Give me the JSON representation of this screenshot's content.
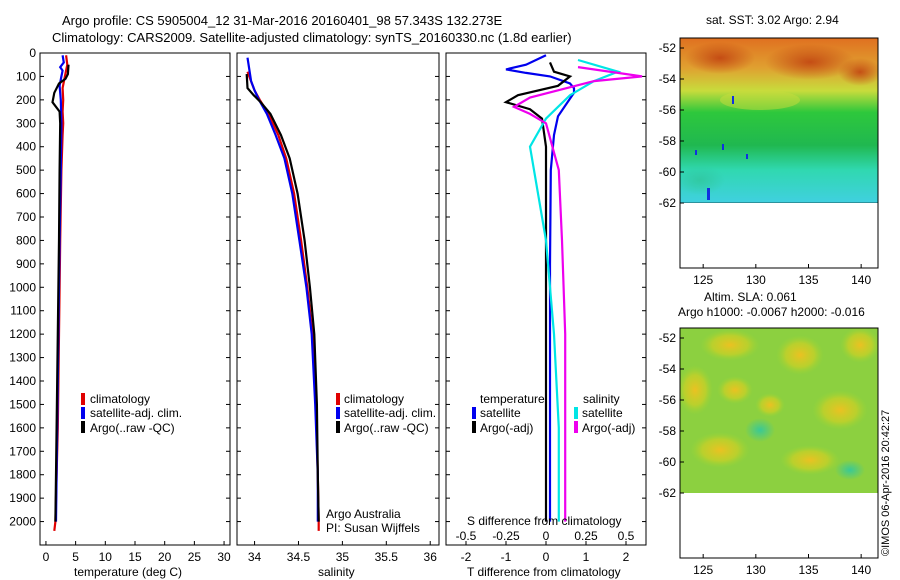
{
  "header": {
    "line1": "Argo profile: CS 5905004_12 31-Mar-2016 20160401_98 57.343S 132.273E",
    "line2": "Climatology: CARS2009. Satellite-adjusted climatology: synTS_20160330.nc (1.8d earlier)"
  },
  "colors": {
    "red": "#e00000",
    "blue": "#0000ee",
    "black": "#000000",
    "cyan": "#00e5e5",
    "magenta": "#ee00ee"
  },
  "chart_data": [
    {
      "type": "line",
      "name": "temperature-profile",
      "xlabel": "temperature (deg C)",
      "xlim": [
        -1,
        31
      ],
      "ylim": [
        0,
        2100
      ],
      "xticks": [
        "0",
        "5",
        "10",
        "15",
        "20",
        "25",
        "30"
      ],
      "yticks": [
        "0",
        "100",
        "200",
        "300",
        "400",
        "500",
        "600",
        "700",
        "800",
        "900",
        "1000",
        "1100",
        "1200",
        "1300",
        "1400",
        "1500",
        "1600",
        "1700",
        "1800",
        "1900",
        "2000"
      ],
      "legend": [
        "climatology",
        "satellite-adj. clim.",
        "Argo(..raw -QC)"
      ],
      "series": [
        {
          "name": "climatology",
          "color": "#e00000",
          "points": [
            [
              3.4,
              10
            ],
            [
              3.6,
              50
            ],
            [
              3.2,
              100
            ],
            [
              2.8,
              150
            ],
            [
              2.9,
              200
            ],
            [
              2.8,
              250
            ],
            [
              2.9,
              300
            ],
            [
              2.8,
              350
            ],
            [
              2.6,
              500
            ],
            [
              2.4,
              800
            ],
            [
              2.2,
              1200
            ],
            [
              2.0,
              1600
            ],
            [
              1.6,
              2000
            ],
            [
              1.4,
              2040
            ]
          ]
        },
        {
          "name": "satellite-adj. clim.",
          "color": "#0000ee",
          "points": [
            [
              2.8,
              10
            ],
            [
              3.0,
              40
            ],
            [
              2.4,
              60
            ],
            [
              2.8,
              75
            ],
            [
              2.6,
              100
            ],
            [
              2.3,
              140
            ],
            [
              2.5,
              200
            ],
            [
              2.6,
              300
            ],
            [
              2.5,
              500
            ],
            [
              2.3,
              800
            ],
            [
              2.1,
              1200
            ],
            [
              1.9,
              1600
            ],
            [
              1.7,
              2000
            ]
          ]
        },
        {
          "name": "Argo(..raw -QC)",
          "color": "#000000",
          "points": [
            [
              3.8,
              50
            ],
            [
              3.7,
              90
            ],
            [
              3.3,
              110
            ],
            [
              2.2,
              130
            ],
            [
              1.4,
              170
            ],
            [
              1.1,
              210
            ],
            [
              2.3,
              250
            ],
            [
              2.4,
              300
            ],
            [
              2.3,
              500
            ],
            [
              2.2,
              800
            ],
            [
              2.0,
              1200
            ],
            [
              1.8,
              1600
            ],
            [
              1.6,
              2000
            ]
          ]
        }
      ]
    },
    {
      "type": "line",
      "name": "salinity-profile",
      "xlabel": "salinity",
      "xlim": [
        33.8,
        36.1
      ],
      "ylim": [
        0,
        2100
      ],
      "xticks": [
        "34",
        "34.5",
        "35",
        "35.5",
        "36"
      ],
      "legend": [
        "climatology",
        "satellite-adj. clim.",
        "Argo(..raw -QC)"
      ],
      "annotation": [
        "Argo Australia",
        "PI: Susan Wijffels"
      ],
      "series": [
        {
          "name": "climatology",
          "color": "#e00000",
          "points": [
            [
              33.92,
              80
            ],
            [
              33.97,
              130
            ],
            [
              34.0,
              160
            ],
            [
              34.06,
              200
            ],
            [
              34.16,
              260
            ],
            [
              34.27,
              350
            ],
            [
              34.36,
              450
            ],
            [
              34.45,
              600
            ],
            [
              34.53,
              800
            ],
            [
              34.6,
              1000
            ],
            [
              34.66,
              1200
            ],
            [
              34.7,
              1500
            ],
            [
              34.72,
              1800
            ],
            [
              34.73,
              2000
            ],
            [
              34.73,
              2040
            ]
          ]
        },
        {
          "name": "satellite-adj. clim.",
          "color": "#0000ee",
          "points": [
            [
              33.92,
              20
            ],
            [
              33.96,
              120
            ],
            [
              34.0,
              160
            ],
            [
              34.05,
              200
            ],
            [
              34.14,
              260
            ],
            [
              34.24,
              350
            ],
            [
              34.34,
              450
            ],
            [
              34.43,
              600
            ],
            [
              34.51,
              800
            ],
            [
              34.59,
              1000
            ],
            [
              34.65,
              1200
            ],
            [
              34.69,
              1500
            ],
            [
              34.72,
              1800
            ],
            [
              34.72,
              2000
            ]
          ]
        },
        {
          "name": "Argo(..raw -QC)",
          "color": "#000000",
          "points": [
            [
              33.91,
              90
            ],
            [
              33.92,
              150
            ],
            [
              33.99,
              180
            ],
            [
              34.07,
              210
            ],
            [
              34.18,
              260
            ],
            [
              34.3,
              350
            ],
            [
              34.4,
              450
            ],
            [
              34.49,
              600
            ],
            [
              34.57,
              800
            ],
            [
              34.63,
              1000
            ],
            [
              34.68,
              1200
            ],
            [
              34.71,
              1500
            ],
            [
              34.72,
              1800
            ],
            [
              34.73,
              2000
            ]
          ]
        }
      ]
    },
    {
      "type": "line",
      "name": "difference-profile",
      "xlabel": "T difference from climatology",
      "xlabel2": "S difference from climatology",
      "xlim": [
        -2.5,
        2.5
      ],
      "ylim": [
        0,
        2100
      ],
      "xticks": [
        "-2",
        "-1",
        "0",
        "1",
        "2"
      ],
      "xticks2": [
        "-0.5",
        "-0.25",
        "0",
        "0.25",
        "0.5"
      ],
      "legend_titles": [
        "temperature",
        "salinity"
      ],
      "legend": [
        "satellite",
        "Argo(-adj)",
        "satellite",
        "Argo(-adj)"
      ],
      "series": [
        {
          "name": "temperature satellite",
          "color": "#0000ee",
          "points": [
            [
              0.0,
              10
            ],
            [
              -0.5,
              50
            ],
            [
              -1.0,
              70
            ],
            [
              -0.5,
              85
            ],
            [
              0.1,
              100
            ],
            [
              0.6,
              130
            ],
            [
              0.7,
              150
            ],
            [
              0.7,
              170
            ],
            [
              0.5,
              220
            ],
            [
              0.3,
              270
            ],
            [
              0.2,
              350
            ],
            [
              0.12,
              500
            ],
            [
              0.1,
              900
            ],
            [
              0.1,
              1500
            ],
            [
              0.1,
              2000
            ]
          ]
        },
        {
          "name": "temperature Argo(-adj)",
          "color": "#000000",
          "points": [
            [
              0.1,
              40
            ],
            [
              0.2,
              80
            ],
            [
              0.6,
              100
            ],
            [
              0.3,
              140
            ],
            [
              -0.7,
              180
            ],
            [
              -1.0,
              210
            ],
            [
              -0.4,
              240
            ],
            [
              -0.1,
              280
            ],
            [
              0.0,
              400
            ],
            [
              0.0,
              900
            ],
            [
              0.0,
              1500
            ],
            [
              0.0,
              2000
            ]
          ]
        },
        {
          "name": "salinity satellite",
          "color": "#00e5e5",
          "points": [
            [
              0.2,
              30
            ],
            [
              0.45,
              80
            ],
            [
              0.3,
              120
            ],
            [
              0.15,
              180
            ],
            [
              0.0,
              280
            ],
            [
              -0.1,
              400
            ],
            [
              -0.05,
              600
            ],
            [
              0.0,
              800
            ],
            [
              0.05,
              1200
            ],
            [
              0.08,
              1600
            ],
            [
              0.08,
              2000
            ]
          ]
        },
        {
          "name": "salinity Argo(-adj)",
          "color": "#ee00ee",
          "points": [
            [
              0.2,
              60
            ],
            [
              0.6,
              100
            ],
            [
              0.3,
              120
            ],
            [
              -0.1,
              190
            ],
            [
              -0.2,
              230
            ],
            [
              -0.1,
              260
            ],
            [
              0.0,
              300
            ],
            [
              0.08,
              500
            ],
            [
              0.1,
              800
            ],
            [
              0.12,
              1200
            ],
            [
              0.12,
              1600
            ],
            [
              0.12,
              2000
            ]
          ]
        }
      ]
    },
    {
      "type": "heatmap",
      "name": "sst-map",
      "title": "sat. SST: 3.02 Argo: 2.94",
      "xticks": [
        "125",
        "130",
        "135",
        "140"
      ],
      "yticks": [
        "-52",
        "-54",
        "-56",
        "-58",
        "-60",
        "-62"
      ]
    },
    {
      "type": "heatmap",
      "name": "sla-map",
      "title": "Altim. SLA: 0.061",
      "subtitle": "Argo h1000: -0.0067 h2000: -0.016",
      "xticks": [
        "125",
        "130",
        "135",
        "140"
      ],
      "yticks": [
        "-52",
        "-54",
        "-56",
        "-58",
        "-60",
        "-62"
      ]
    }
  ],
  "credit": "©IMOS 06-Apr-2016 20:42:27"
}
